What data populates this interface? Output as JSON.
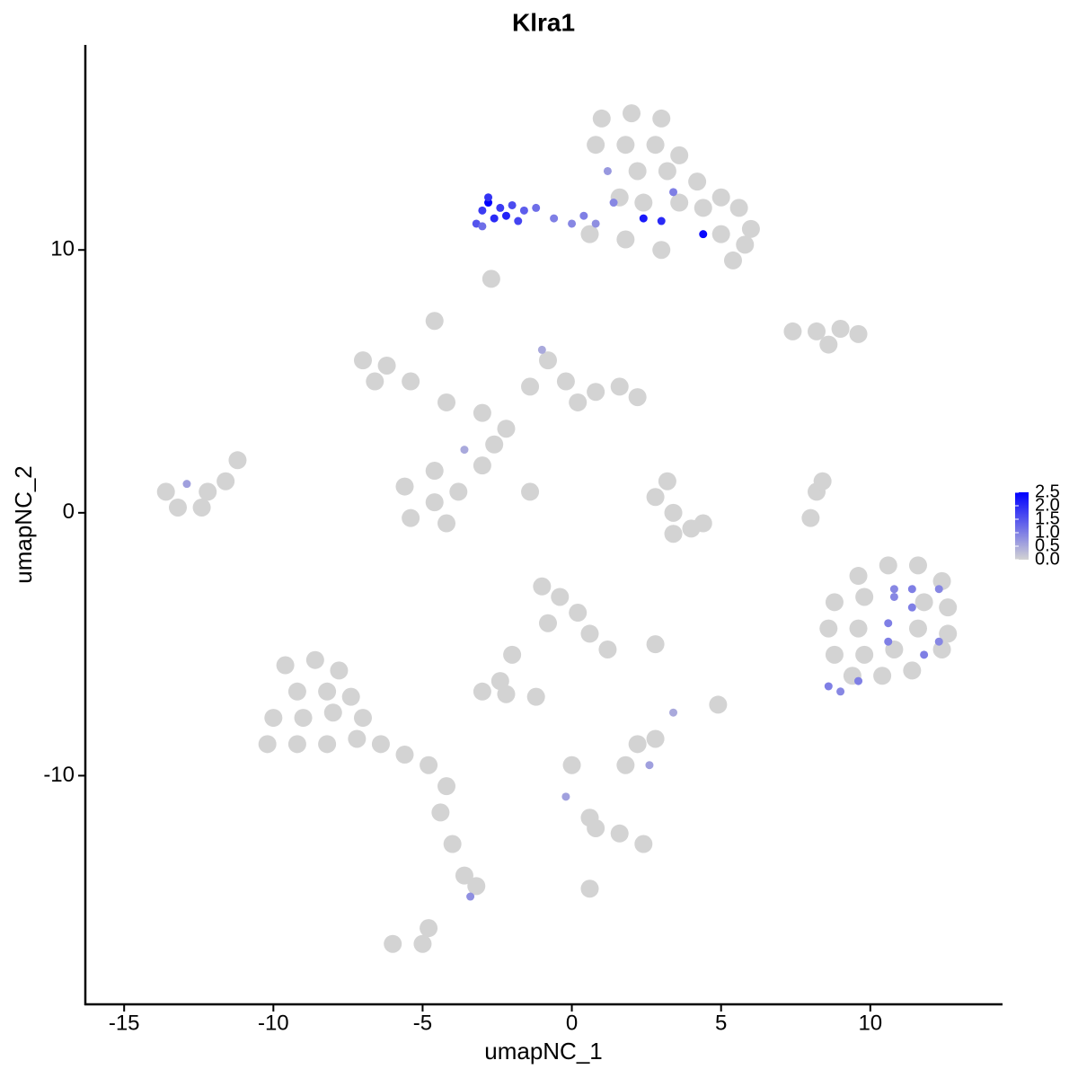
{
  "chart_data": {
    "type": "scatter",
    "title": "Klra1",
    "x_label": "umapNC_1",
    "y_label": "umapNC_2",
    "xlim": [
      -16.3,
      14.4
    ],
    "ylim": [
      -18.7,
      17.8
    ],
    "xticks": [
      -15,
      -10,
      -5,
      0,
      5,
      10
    ],
    "yticks": [
      -10,
      0,
      10
    ],
    "low_color": "#d3d3d3",
    "high_color": "#0000ff",
    "colorlim": [
      0,
      2.5
    ],
    "colorbar_ticks": [
      {
        "value": 0,
        "label": "0.0"
      },
      0.5,
      {
        "value": 1,
        "label": "1.0"
      },
      1.5,
      {
        "value": 2,
        "label": "2.0"
      },
      2.5
    ],
    "points": [
      {
        "x": 1.0,
        "y": 15.0,
        "value": 0
      },
      {
        "x": 2.0,
        "y": 15.2,
        "value": 0
      },
      {
        "x": 3.0,
        "y": 15.0,
        "value": 0
      },
      {
        "x": 0.8,
        "y": 14.0,
        "value": 0
      },
      {
        "x": 1.8,
        "y": 14.0,
        "value": 0
      },
      {
        "x": 2.8,
        "y": 14.0,
        "value": 0
      },
      {
        "x": 3.6,
        "y": 13.6,
        "value": 0
      },
      {
        "x": 2.2,
        "y": 13.0,
        "value": 0
      },
      {
        "x": 3.2,
        "y": 13.0,
        "value": 0
      },
      {
        "x": 4.2,
        "y": 12.6,
        "value": 0
      },
      {
        "x": 5.0,
        "y": 12.0,
        "value": 0
      },
      {
        "x": 5.6,
        "y": 11.6,
        "value": 0
      },
      {
        "x": 4.4,
        "y": 11.6,
        "value": 0
      },
      {
        "x": 3.6,
        "y": 11.8,
        "value": 0
      },
      {
        "x": 5.0,
        "y": 10.6,
        "value": 0
      },
      {
        "x": 5.8,
        "y": 10.2,
        "value": 0
      },
      {
        "x": 5.4,
        "y": 9.6,
        "value": 0
      },
      {
        "x": 1.6,
        "y": 12.0,
        "value": 0
      },
      {
        "x": 2.4,
        "y": 11.8,
        "value": 0
      },
      {
        "x": 6.0,
        "y": 10.8,
        "value": 0
      },
      {
        "x": 0.6,
        "y": 10.6,
        "value": 0
      },
      {
        "x": 1.8,
        "y": 10.4,
        "value": 0
      },
      {
        "x": 3.0,
        "y": 10.0,
        "value": 0
      },
      {
        "x": -2.7,
        "y": 8.9,
        "value": 0
      },
      {
        "x": 7.4,
        "y": 6.9,
        "value": 0
      },
      {
        "x": 8.2,
        "y": 6.9,
        "value": 0
      },
      {
        "x": 9.0,
        "y": 7.0,
        "value": 0
      },
      {
        "x": 9.6,
        "y": 6.8,
        "value": 0
      },
      {
        "x": 8.6,
        "y": 6.4,
        "value": 0
      },
      {
        "x": -7.0,
        "y": 5.8,
        "value": 0
      },
      {
        "x": -6.2,
        "y": 5.6,
        "value": 0
      },
      {
        "x": -5.4,
        "y": 5.0,
        "value": 0
      },
      {
        "x": -6.6,
        "y": 5.0,
        "value": 0
      },
      {
        "x": -4.2,
        "y": 4.2,
        "value": 0
      },
      {
        "x": -4.6,
        "y": 7.3,
        "value": 0
      },
      {
        "x": -3.0,
        "y": 3.8,
        "value": 0
      },
      {
        "x": -2.2,
        "y": 3.2,
        "value": 0
      },
      {
        "x": -1.4,
        "y": 4.8,
        "value": 0
      },
      {
        "x": -0.8,
        "y": 5.8,
        "value": 0
      },
      {
        "x": -0.2,
        "y": 5.0,
        "value": 0
      },
      {
        "x": 0.8,
        "y": 4.6,
        "value": 0
      },
      {
        "x": 1.6,
        "y": 4.8,
        "value": 0
      },
      {
        "x": 2.2,
        "y": 4.4,
        "value": 0
      },
      {
        "x": 0.2,
        "y": 4.2,
        "value": 0
      },
      {
        "x": -2.6,
        "y": 2.6,
        "value": 0
      },
      {
        "x": -4.6,
        "y": 1.6,
        "value": 0
      },
      {
        "x": -5.6,
        "y": 1.0,
        "value": 0
      },
      {
        "x": -4.6,
        "y": 0.4,
        "value": 0
      },
      {
        "x": -5.4,
        "y": -0.2,
        "value": 0
      },
      {
        "x": -4.2,
        "y": -0.4,
        "value": 0
      },
      {
        "x": -3.8,
        "y": 0.8,
        "value": 0
      },
      {
        "x": -3.0,
        "y": 1.8,
        "value": 0
      },
      {
        "x": -1.4,
        "y": 0.8,
        "value": 0
      },
      {
        "x": -13.6,
        "y": 0.8,
        "value": 0
      },
      {
        "x": -12.2,
        "y": 0.8,
        "value": 0
      },
      {
        "x": -13.2,
        "y": 0.2,
        "value": 0
      },
      {
        "x": -12.4,
        "y": 0.2,
        "value": 0
      },
      {
        "x": -11.6,
        "y": 1.2,
        "value": 0
      },
      {
        "x": -11.2,
        "y": 2.0,
        "value": 0
      },
      {
        "x": 2.8,
        "y": 0.6,
        "value": 0
      },
      {
        "x": 3.2,
        "y": 1.2,
        "value": 0
      },
      {
        "x": 3.4,
        "y": 0.0,
        "value": 0
      },
      {
        "x": 4.0,
        "y": -0.6,
        "value": 0
      },
      {
        "x": 3.4,
        "y": -0.8,
        "value": 0
      },
      {
        "x": 4.4,
        "y": -0.4,
        "value": 0
      },
      {
        "x": 8.2,
        "y": 0.8,
        "value": 0
      },
      {
        "x": 8.0,
        "y": -0.2,
        "value": 0
      },
      {
        "x": 8.4,
        "y": 1.2,
        "value": 0
      },
      {
        "x": 9.6,
        "y": -2.4,
        "value": 0
      },
      {
        "x": 10.6,
        "y": -2.0,
        "value": 0
      },
      {
        "x": 11.6,
        "y": -2.0,
        "value": 0
      },
      {
        "x": 12.4,
        "y": -2.6,
        "value": 0
      },
      {
        "x": 8.8,
        "y": -3.4,
        "value": 0
      },
      {
        "x": 9.8,
        "y": -3.2,
        "value": 0
      },
      {
        "x": 11.8,
        "y": -3.4,
        "value": 0
      },
      {
        "x": 12.6,
        "y": -3.6,
        "value": 0
      },
      {
        "x": 8.6,
        "y": -4.4,
        "value": 0
      },
      {
        "x": 9.6,
        "y": -4.4,
        "value": 0
      },
      {
        "x": 11.6,
        "y": -4.4,
        "value": 0
      },
      {
        "x": 12.6,
        "y": -4.6,
        "value": 0
      },
      {
        "x": 8.8,
        "y": -5.4,
        "value": 0
      },
      {
        "x": 9.8,
        "y": -5.4,
        "value": 0
      },
      {
        "x": 10.8,
        "y": -5.2,
        "value": 0
      },
      {
        "x": 12.4,
        "y": -5.2,
        "value": 0
      },
      {
        "x": 9.4,
        "y": -6.2,
        "value": 0
      },
      {
        "x": 10.4,
        "y": -6.2,
        "value": 0
      },
      {
        "x": 11.4,
        "y": -6.0,
        "value": 0
      },
      {
        "x": -1.0,
        "y": -2.8,
        "value": 0
      },
      {
        "x": -0.4,
        "y": -3.2,
        "value": 0
      },
      {
        "x": 0.2,
        "y": -3.8,
        "value": 0
      },
      {
        "x": -0.8,
        "y": -4.2,
        "value": 0
      },
      {
        "x": 0.6,
        "y": -4.6,
        "value": 0
      },
      {
        "x": 1.2,
        "y": -5.2,
        "value": 0
      },
      {
        "x": -2.0,
        "y": -5.4,
        "value": 0
      },
      {
        "x": -2.4,
        "y": -6.4,
        "value": 0
      },
      {
        "x": -3.0,
        "y": -6.8,
        "value": 0
      },
      {
        "x": -2.2,
        "y": -6.9,
        "value": 0
      },
      {
        "x": -1.2,
        "y": -7.0,
        "value": 0
      },
      {
        "x": -9.6,
        "y": -5.8,
        "value": 0
      },
      {
        "x": -8.6,
        "y": -5.6,
        "value": 0
      },
      {
        "x": -7.8,
        "y": -6.0,
        "value": 0
      },
      {
        "x": -9.2,
        "y": -6.8,
        "value": 0
      },
      {
        "x": -8.2,
        "y": -6.8,
        "value": 0
      },
      {
        "x": -7.4,
        "y": -7.0,
        "value": 0
      },
      {
        "x": -10.0,
        "y": -7.8,
        "value": 0
      },
      {
        "x": -9.0,
        "y": -7.8,
        "value": 0
      },
      {
        "x": -8.0,
        "y": -7.6,
        "value": 0
      },
      {
        "x": -7.0,
        "y": -7.8,
        "value": 0
      },
      {
        "x": -10.2,
        "y": -8.8,
        "value": 0
      },
      {
        "x": -9.2,
        "y": -8.8,
        "value": 0
      },
      {
        "x": -8.2,
        "y": -8.8,
        "value": 0
      },
      {
        "x": -7.2,
        "y": -8.6,
        "value": 0
      },
      {
        "x": -6.4,
        "y": -8.8,
        "value": 0
      },
      {
        "x": -5.6,
        "y": -9.2,
        "value": 0
      },
      {
        "x": -4.8,
        "y": -9.6,
        "value": 0
      },
      {
        "x": -4.2,
        "y": -10.4,
        "value": 0
      },
      {
        "x": -4.4,
        "y": -11.4,
        "value": 0
      },
      {
        "x": -4.0,
        "y": -12.6,
        "value": 0
      },
      {
        "x": -3.6,
        "y": -13.8,
        "value": 0
      },
      {
        "x": -3.2,
        "y": -14.2,
        "value": 0
      },
      {
        "x": 2.2,
        "y": -8.8,
        "value": 0
      },
      {
        "x": 2.8,
        "y": -8.6,
        "value": 0
      },
      {
        "x": 1.8,
        "y": -9.6,
        "value": 0
      },
      {
        "x": 4.9,
        "y": -7.3,
        "value": 0
      },
      {
        "x": 0.0,
        "y": -9.6,
        "value": 0
      },
      {
        "x": 0.6,
        "y": -11.6,
        "value": 0
      },
      {
        "x": 1.6,
        "y": -12.2,
        "value": 0
      },
      {
        "x": 2.4,
        "y": -12.6,
        "value": 0
      },
      {
        "x": 0.8,
        "y": -12.0,
        "value": 0
      },
      {
        "x": 2.8,
        "y": -5.0,
        "value": 0
      },
      {
        "x": -5.0,
        "y": -16.4,
        "value": 0
      },
      {
        "x": -4.8,
        "y": -15.8,
        "value": 0
      },
      {
        "x": -6.0,
        "y": -16.4,
        "value": 0
      },
      {
        "x": 0.6,
        "y": -14.3,
        "value": 0
      },
      {
        "x": -3.0,
        "y": 11.5,
        "value": 1.8
      },
      {
        "x": -2.8,
        "y": 11.8,
        "value": 2.5
      },
      {
        "x": -2.6,
        "y": 11.2,
        "value": 2.0
      },
      {
        "x": -3.2,
        "y": 11.0,
        "value": 1.5
      },
      {
        "x": -2.4,
        "y": 11.6,
        "value": 1.8
      },
      {
        "x": -2.0,
        "y": 11.7,
        "value": 1.6
      },
      {
        "x": -1.6,
        "y": 11.5,
        "value": 1.4
      },
      {
        "x": -1.2,
        "y": 11.6,
        "value": 1.2
      },
      {
        "x": -2.8,
        "y": 12.0,
        "value": 1.9
      },
      {
        "x": -3.0,
        "y": 10.9,
        "value": 1.2
      },
      {
        "x": -0.6,
        "y": 11.2,
        "value": 1.0
      },
      {
        "x": 0.0,
        "y": 11.0,
        "value": 0.9
      },
      {
        "x": 0.4,
        "y": 11.3,
        "value": 1.0
      },
      {
        "x": 0.8,
        "y": 11.0,
        "value": 0.8
      },
      {
        "x": 1.4,
        "y": 11.8,
        "value": 0.9
      },
      {
        "x": 2.4,
        "y": 11.2,
        "value": 2.2
      },
      {
        "x": 3.0,
        "y": 11.1,
        "value": 2.0
      },
      {
        "x": 4.4,
        "y": 10.6,
        "value": 2.4
      },
      {
        "x": 1.2,
        "y": 13.0,
        "value": 0.7
      },
      {
        "x": 3.4,
        "y": 12.2,
        "value": 1.0
      },
      {
        "x": -2.2,
        "y": 11.3,
        "value": 2.1
      },
      {
        "x": -1.8,
        "y": 11.1,
        "value": 1.7
      },
      {
        "x": -12.9,
        "y": 1.1,
        "value": 0.6
      },
      {
        "x": -1.0,
        "y": 6.2,
        "value": 0.5
      },
      {
        "x": -3.6,
        "y": 2.4,
        "value": 0.5
      },
      {
        "x": 10.8,
        "y": -3.2,
        "value": 0.9
      },
      {
        "x": 10.6,
        "y": -4.2,
        "value": 1.0
      },
      {
        "x": 11.8,
        "y": -5.4,
        "value": 1.0
      },
      {
        "x": 8.6,
        "y": -6.6,
        "value": 1.0
      },
      {
        "x": 9.0,
        "y": -6.8,
        "value": 0.9
      },
      {
        "x": 9.6,
        "y": -6.4,
        "value": 1.0
      },
      {
        "x": 10.6,
        "y": -4.9,
        "value": 1.0
      },
      {
        "x": 11.4,
        "y": -3.6,
        "value": 1.0
      },
      {
        "x": 11.4,
        "y": -2.9,
        "value": 1.0
      },
      {
        "x": 12.3,
        "y": -2.9,
        "value": 0.9
      },
      {
        "x": 10.8,
        "y": -2.9,
        "value": 0.9
      },
      {
        "x": 12.3,
        "y": -4.9,
        "value": 0.9
      },
      {
        "x": -3.4,
        "y": -14.6,
        "value": 0.8
      },
      {
        "x": 2.6,
        "y": -9.6,
        "value": 0.6
      },
      {
        "x": 3.4,
        "y": -7.6,
        "value": 0.5
      },
      {
        "x": -0.2,
        "y": -10.8,
        "value": 0.6
      }
    ]
  }
}
